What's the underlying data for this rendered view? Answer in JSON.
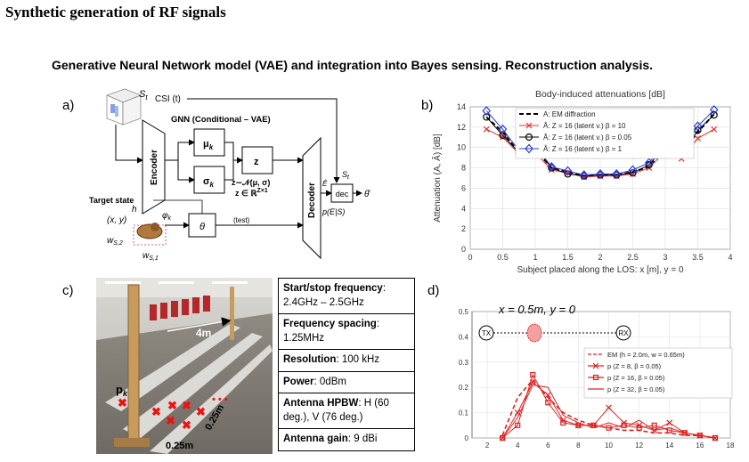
{
  "title": "Synthetic generation of RF signals",
  "subtitle": "Generative Neural Network model (VAE) and integration into Bayes sensing. Reconstruction analysis.",
  "panels": {
    "a": "a)",
    "b": "b)",
    "c": "c)",
    "d": "d)"
  },
  "diagram": {
    "st": "S",
    "st_sub": "t",
    "csi": "CSI (t)",
    "gnn": "GNN (Conditional – VAE)",
    "encoder": "Encoder",
    "decoder": "Decoder",
    "mu": "μ",
    "mu_sub": "k",
    "sigma": "σ",
    "sigma_sub": "k",
    "z": "z",
    "z_dist": "z∼𝒩(μ, σ)",
    "z_space": "z ∈ ℝ",
    "z_space_sup": "Z×1",
    "dec": "dec",
    "theta": "θ",
    "theta_hat": "θ̂",
    "e_hat": "Ê",
    "p_post": "p(E|S)",
    "test": "(test)",
    "target_state": "Target state",
    "h": "h",
    "xy": "(x, y)",
    "phi": "φ",
    "phi_sub": "k",
    "w52": "w",
    "w52_sub": "S,2",
    "w51": "w",
    "w51_sub": "S,1",
    "st_right": "S",
    "st_right_sub": "t"
  },
  "photo": {
    "dist_label": "4m",
    "spacing_a": "0.25m",
    "spacing_b": "0.25m",
    "pk": "p",
    "pk_sub": "k"
  },
  "specs": [
    {
      "label": "Start/stop frequency",
      "sep": ":",
      "value": "2.4GHz – 2.5GHz"
    },
    {
      "label": "Frequency spacing",
      "sep": ":",
      "value": "1.25MHz"
    },
    {
      "label": "Resolution",
      "sep": ":",
      "value": "100 kHz"
    },
    {
      "label": "Power",
      "sep": ":",
      "value": "0dBm"
    },
    {
      "label": "Antenna HPBW",
      "sep": ":",
      "value": "H (60 deg.), V (76 deg.)"
    },
    {
      "label": "Antenna gain",
      "sep": ":",
      "value": "9 dBi"
    }
  ],
  "chart_data": [
    {
      "type": "line",
      "title": "Body-induced attenuations [dB]",
      "xlabel": "Subject placed along the LOS: x [m], y = 0",
      "ylabel": "Attenuation (A, Â) [dB]",
      "xlim": [
        0,
        4
      ],
      "ylim": [
        0,
        14
      ],
      "xticks": [
        "0",
        "0.5",
        "1",
        "1.5",
        "2",
        "2.5",
        "3",
        "3.5",
        "4"
      ],
      "yticks": [
        "0",
        "2",
        "4",
        "6",
        "8",
        "10",
        "12",
        "14"
      ],
      "legend_position": "top-right",
      "x": [
        0.25,
        0.5,
        0.75,
        1.0,
        1.25,
        1.5,
        1.75,
        2.0,
        2.25,
        2.5,
        2.75,
        3.0,
        3.25,
        3.5,
        3.75
      ],
      "series": [
        {
          "name": "A: EM diffraction",
          "color": "#000000",
          "style": "dashed",
          "values": [
            13.0,
            11.5,
            9.5,
            9.8,
            8.0,
            7.6,
            7.2,
            7.3,
            7.3,
            7.6,
            8.1,
            10.0,
            9.4,
            11.5,
            13.3
          ]
        },
        {
          "name": "Â: Z = 16 (latent v.) β = 10",
          "color": "#e8322c",
          "marker": "x",
          "values": [
            11.8,
            11.0,
            9.4,
            9.5,
            7.8,
            7.5,
            7.1,
            7.2,
            7.2,
            7.4,
            8.0,
            9.6,
            8.9,
            10.9,
            11.8
          ]
        },
        {
          "name": "Â: Z = 16 (latent v.) β = 0.05",
          "color": "#000000",
          "marker": "o",
          "values": [
            13.0,
            11.2,
            9.5,
            10.0,
            8.0,
            7.4,
            7.2,
            7.3,
            7.3,
            7.5,
            8.3,
            10.1,
            9.3,
            11.7,
            13.2
          ]
        },
        {
          "name": "Â: Z = 16 (latent v.) β = 1",
          "color": "#2b3bd6",
          "marker": "diamond",
          "values": [
            13.6,
            11.8,
            9.7,
            10.2,
            8.1,
            7.7,
            7.3,
            7.4,
            7.4,
            7.8,
            8.5,
            10.4,
            9.8,
            12.1,
            13.7
          ]
        }
      ]
    },
    {
      "type": "line",
      "annotation": "x = 0.5m, y = 0",
      "tx_label": "TX",
      "rx_label": "RX",
      "xlim": [
        1,
        18
      ],
      "ylim": [
        0,
        0.5
      ],
      "xticks": [
        "2",
        "4",
        "6",
        "8",
        "10",
        "12",
        "14",
        "16",
        "18"
      ],
      "yticks": [
        "0",
        "0.1",
        "0.2",
        "0.3",
        "0.4",
        "0.5"
      ],
      "legend_position": "center-right",
      "x": [
        3,
        4,
        5,
        6,
        7,
        8,
        9,
        10,
        11,
        12,
        13,
        14,
        15,
        16,
        17
      ],
      "series": [
        {
          "name": "EM (h = 2.0m, w = 0.65m)",
          "color": "#e02020",
          "style": "dashed",
          "values": [
            0.01,
            0.16,
            0.23,
            0.16,
            0.1,
            0.07,
            0.05,
            0.04,
            0.03,
            0.03,
            0.02,
            0.02,
            0.01,
            0.01,
            0.0
          ]
        },
        {
          "name": "p (Z = 8, β = 0.05)",
          "color": "#e02020",
          "marker": "x",
          "values": [
            0.0,
            0.1,
            0.22,
            0.17,
            0.07,
            0.05,
            0.05,
            0.12,
            0.06,
            0.05,
            0.03,
            0.06,
            0.02,
            0.01,
            0.0
          ]
        },
        {
          "name": "p (Z = 16, β = 0.05)",
          "color": "#e02020",
          "marker": "square",
          "values": [
            0.0,
            0.05,
            0.25,
            0.14,
            0.06,
            0.05,
            0.05,
            0.04,
            0.05,
            0.04,
            0.05,
            0.03,
            0.02,
            0.01,
            0.0
          ]
        },
        {
          "name": "p (Z = 32, β = 0.05)",
          "color": "#e02020",
          "marker": "none",
          "values": [
            0.0,
            0.08,
            0.21,
            0.2,
            0.09,
            0.06,
            0.04,
            0.06,
            0.04,
            0.07,
            0.03,
            0.04,
            0.02,
            0.01,
            0.0
          ]
        }
      ]
    }
  ]
}
